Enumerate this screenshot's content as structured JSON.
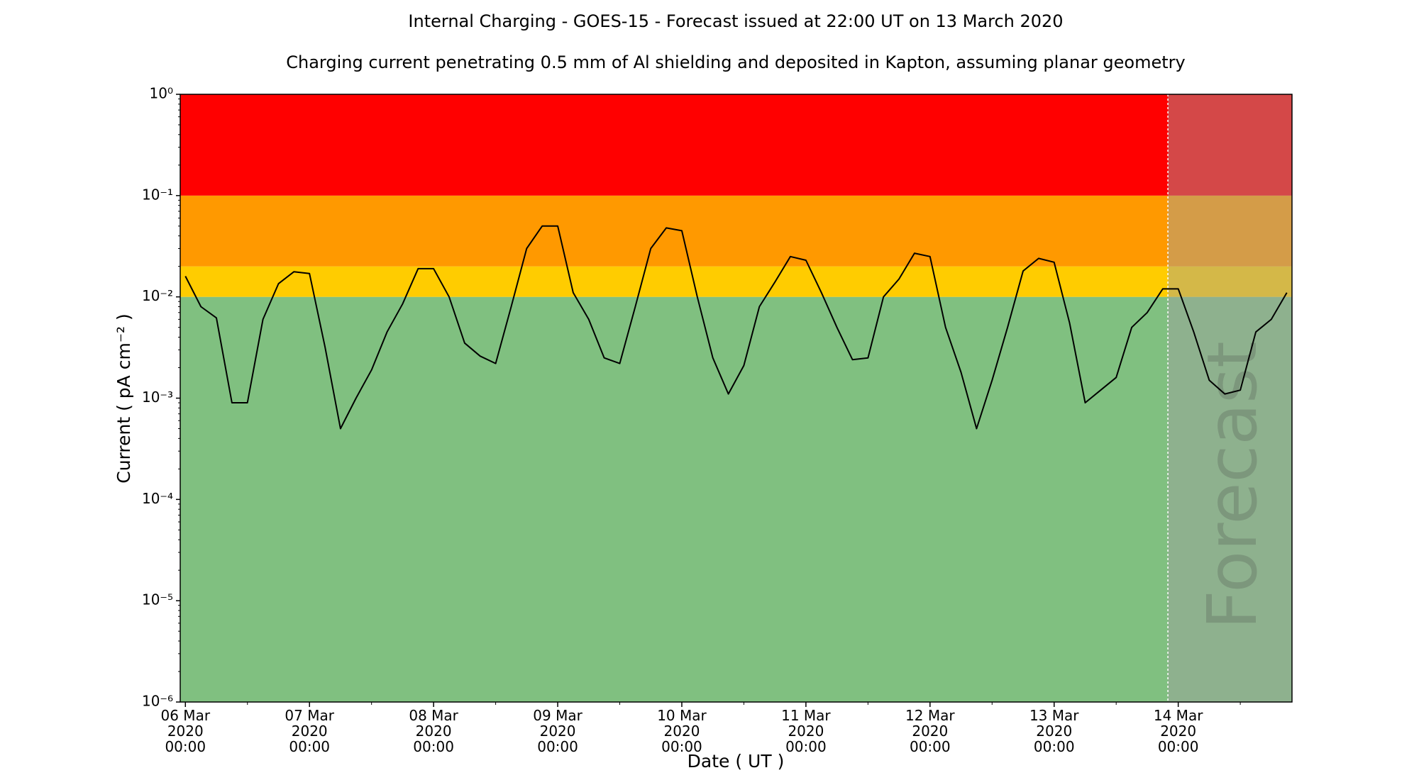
{
  "chart_data": {
    "type": "line",
    "title": "Internal Charging - GOES-15 - Forecast issued at 22:00 UT on 13 March 2020",
    "subtitle": "Charging current penetrating 0.5 mm of Al shielding and deposited in Kapton, assuming planar geometry",
    "x_label": "Date ( UT )",
    "y_label": "Current ( pA cm⁻² )",
    "log_y": true,
    "xlim": [
      "2020-03-05 23:00",
      "2020-03-14 22:00"
    ],
    "ylim": [
      1e-06,
      1
    ],
    "yticks": [
      {
        "value": 1e-06,
        "label": "10⁻⁶"
      },
      {
        "value": 1e-05,
        "label": "10⁻⁵"
      },
      {
        "value": 0.0001,
        "label": "10⁻⁴"
      },
      {
        "value": 0.001,
        "label": "10⁻³"
      },
      {
        "value": 0.01,
        "label": "10⁻²"
      },
      {
        "value": 0.1,
        "label": "10⁻¹"
      },
      {
        "value": 1,
        "label": "10⁰"
      }
    ],
    "xticks": [
      {
        "value": "2020-03-06 00:00",
        "label": "06 Mar\n2020\n00:00"
      },
      {
        "value": "2020-03-07 00:00",
        "label": "07 Mar\n2020\n00:00"
      },
      {
        "value": "2020-03-08 00:00",
        "label": "08 Mar\n2020\n00:00"
      },
      {
        "value": "2020-03-09 00:00",
        "label": "09 Mar\n2020\n00:00"
      },
      {
        "value": "2020-03-10 00:00",
        "label": "10 Mar\n2020\n00:00"
      },
      {
        "value": "2020-03-11 00:00",
        "label": "11 Mar\n2020\n00:00"
      },
      {
        "value": "2020-03-12 00:00",
        "label": "12 Mar\n2020\n00:00"
      },
      {
        "value": "2020-03-13 00:00",
        "label": "13 Mar\n2020\n00:00"
      },
      {
        "value": "2020-03-14 00:00",
        "label": "14 Mar\n2020\n00:00"
      }
    ],
    "bands": [
      {
        "from": 1e-06,
        "to": 0.01,
        "color": "#80c080"
      },
      {
        "from": 0.01,
        "to": 0.02,
        "color": "#ffcc00"
      },
      {
        "from": 0.02,
        "to": 0.1,
        "color": "#ff9900"
      },
      {
        "from": 0.1,
        "to": 1,
        "color": "#ff0000"
      }
    ],
    "forecast": {
      "start": "2020-03-13 22:00",
      "label": "Forecast",
      "color": "rgba(160,160,160,0.45)"
    },
    "x": [
      "2020-03-06 00:00",
      "2020-03-06 03:00",
      "2020-03-06 06:00",
      "2020-03-06 09:00",
      "2020-03-06 12:00",
      "2020-03-06 15:00",
      "2020-03-06 18:00",
      "2020-03-06 21:00",
      "2020-03-07 00:00",
      "2020-03-07 03:00",
      "2020-03-07 06:00",
      "2020-03-07 09:00",
      "2020-03-07 12:00",
      "2020-03-07 15:00",
      "2020-03-07 18:00",
      "2020-03-07 21:00",
      "2020-03-08 00:00",
      "2020-03-08 03:00",
      "2020-03-08 06:00",
      "2020-03-08 09:00",
      "2020-03-08 12:00",
      "2020-03-08 15:00",
      "2020-03-08 18:00",
      "2020-03-08 21:00",
      "2020-03-09 00:00",
      "2020-03-09 03:00",
      "2020-03-09 06:00",
      "2020-03-09 09:00",
      "2020-03-09 12:00",
      "2020-03-09 15:00",
      "2020-03-09 18:00",
      "2020-03-09 21:00",
      "2020-03-10 00:00",
      "2020-03-10 03:00",
      "2020-03-10 06:00",
      "2020-03-10 09:00",
      "2020-03-10 12:00",
      "2020-03-10 15:00",
      "2020-03-10 18:00",
      "2020-03-10 21:00",
      "2020-03-11 00:00",
      "2020-03-11 03:00",
      "2020-03-11 06:00",
      "2020-03-11 09:00",
      "2020-03-11 12:00",
      "2020-03-11 15:00",
      "2020-03-11 18:00",
      "2020-03-11 21:00",
      "2020-03-12 00:00",
      "2020-03-12 03:00",
      "2020-03-12 06:00",
      "2020-03-12 09:00",
      "2020-03-12 12:00",
      "2020-03-12 15:00",
      "2020-03-12 18:00",
      "2020-03-12 21:00",
      "2020-03-13 00:00",
      "2020-03-13 03:00",
      "2020-03-13 06:00",
      "2020-03-13 09:00",
      "2020-03-13 12:00",
      "2020-03-13 15:00",
      "2020-03-13 18:00",
      "2020-03-13 21:00",
      "2020-03-14 00:00",
      "2020-03-14 03:00",
      "2020-03-14 06:00",
      "2020-03-14 09:00",
      "2020-03-14 12:00",
      "2020-03-14 15:00",
      "2020-03-14 18:00",
      "2020-03-14 21:00"
    ],
    "series": [
      {
        "name": "Current",
        "color": "#000000",
        "values": [
          0.016,
          0.008,
          0.0062,
          0.0009,
          0.0009,
          0.006,
          0.0135,
          0.0177,
          0.017,
          0.0032,
          0.0005,
          0.001,
          0.0019,
          0.0045,
          0.0085,
          0.019,
          0.019,
          0.01,
          0.0035,
          0.0026,
          0.0022,
          0.008,
          0.03,
          0.05,
          0.05,
          0.011,
          0.006,
          0.0025,
          0.0022,
          0.008,
          0.03,
          0.048,
          0.045,
          0.01,
          0.0025,
          0.0011,
          0.0021,
          0.008,
          0.014,
          0.025,
          0.023,
          0.011,
          0.005,
          0.0024,
          0.0025,
          0.01,
          0.015,
          0.027,
          0.025,
          0.005,
          0.0018,
          0.0005,
          0.0015,
          0.005,
          0.018,
          0.024,
          0.022,
          0.0055,
          0.0009,
          0.0012,
          0.0016,
          0.005,
          0.007,
          0.012,
          0.012,
          0.0045,
          0.0015,
          0.0011,
          0.0012,
          0.0045,
          0.006,
          0.011
        ]
      }
    ]
  }
}
